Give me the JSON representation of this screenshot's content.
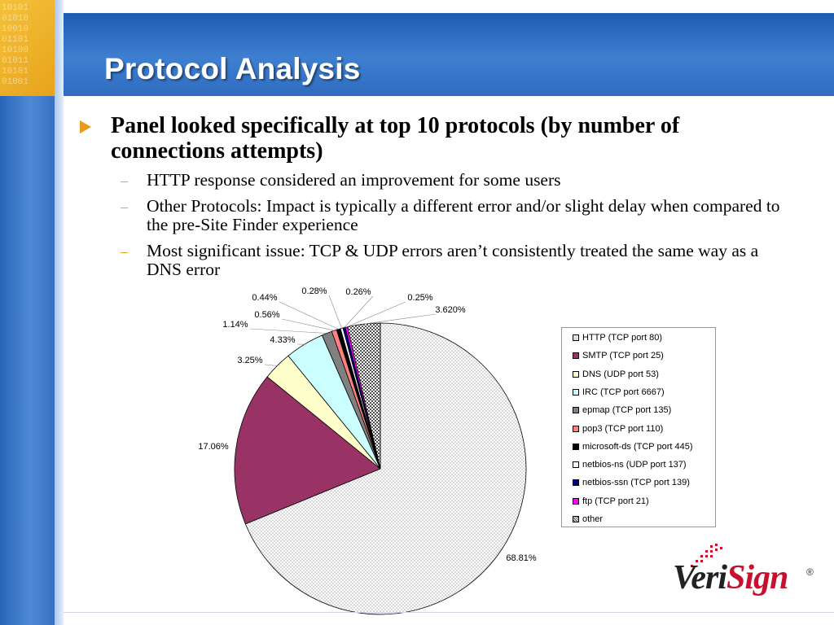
{
  "slide": {
    "title": "Protocol Analysis",
    "main_bullet": "Panel looked specifically at top 10 protocols (by number of  connections attempts)",
    "sub_bullets": [
      "HTTP response considered an improvement for some users",
      "Other Protocols: Impact is typically a different error and/or slight delay when compared to the pre-Site Finder experience",
      "Most significant issue: TCP & UDP errors aren’t consistently treated the same way as a DNS error"
    ],
    "dash_glyph": "–",
    "logo": {
      "text_dark": "Veri",
      "text_red": "Sign",
      "reg": "®"
    }
  },
  "colors": {
    "accent_orange": "#e89a1a",
    "header_blue": "#2f6cc0",
    "logo_red": "#c8102e"
  },
  "chart_data": {
    "type": "pie",
    "title": "",
    "series": [
      {
        "name": "HTTP (TCP port 80)",
        "value": 68.81,
        "label": "68.81%",
        "color": "#ececec",
        "pattern": "hatch-light"
      },
      {
        "name": "SMTP (TCP port 25)",
        "value": 17.06,
        "label": "17.06%",
        "color": "#993366"
      },
      {
        "name": "DNS (UDP port 53)",
        "value": 3.25,
        "label": "3.25%",
        "color": "#ffffcc"
      },
      {
        "name": "IRC (TCP port 6667)",
        "value": 4.33,
        "label": "4.33%",
        "color": "#ccffff"
      },
      {
        "name": "epmap (TCP port 135)",
        "value": 1.14,
        "label": "1.14%",
        "color": "#808080"
      },
      {
        "name": "pop3 (TCP port 110)",
        "value": 0.56,
        "label": "0.56%",
        "color": "#ff8080"
      },
      {
        "name": "microsoft-ds (TCP port 445)",
        "value": 0.44,
        "label": "0.44%",
        "color": "#000000"
      },
      {
        "name": "netbios-ns (UDP port 137)",
        "value": 0.28,
        "label": "0.28%",
        "color": "#ffffff"
      },
      {
        "name": "netbios-ssn (TCP port 139)",
        "value": 0.26,
        "label": "0.26%",
        "color": "#000080"
      },
      {
        "name": "ftp (TCP port 21)",
        "value": 0.25,
        "label": "0.25%",
        "color": "#ff00ff"
      },
      {
        "name": "other",
        "value": 3.62,
        "label": "3.620%",
        "color": "#606060",
        "pattern": "checker"
      }
    ],
    "legend_placement": "right"
  }
}
